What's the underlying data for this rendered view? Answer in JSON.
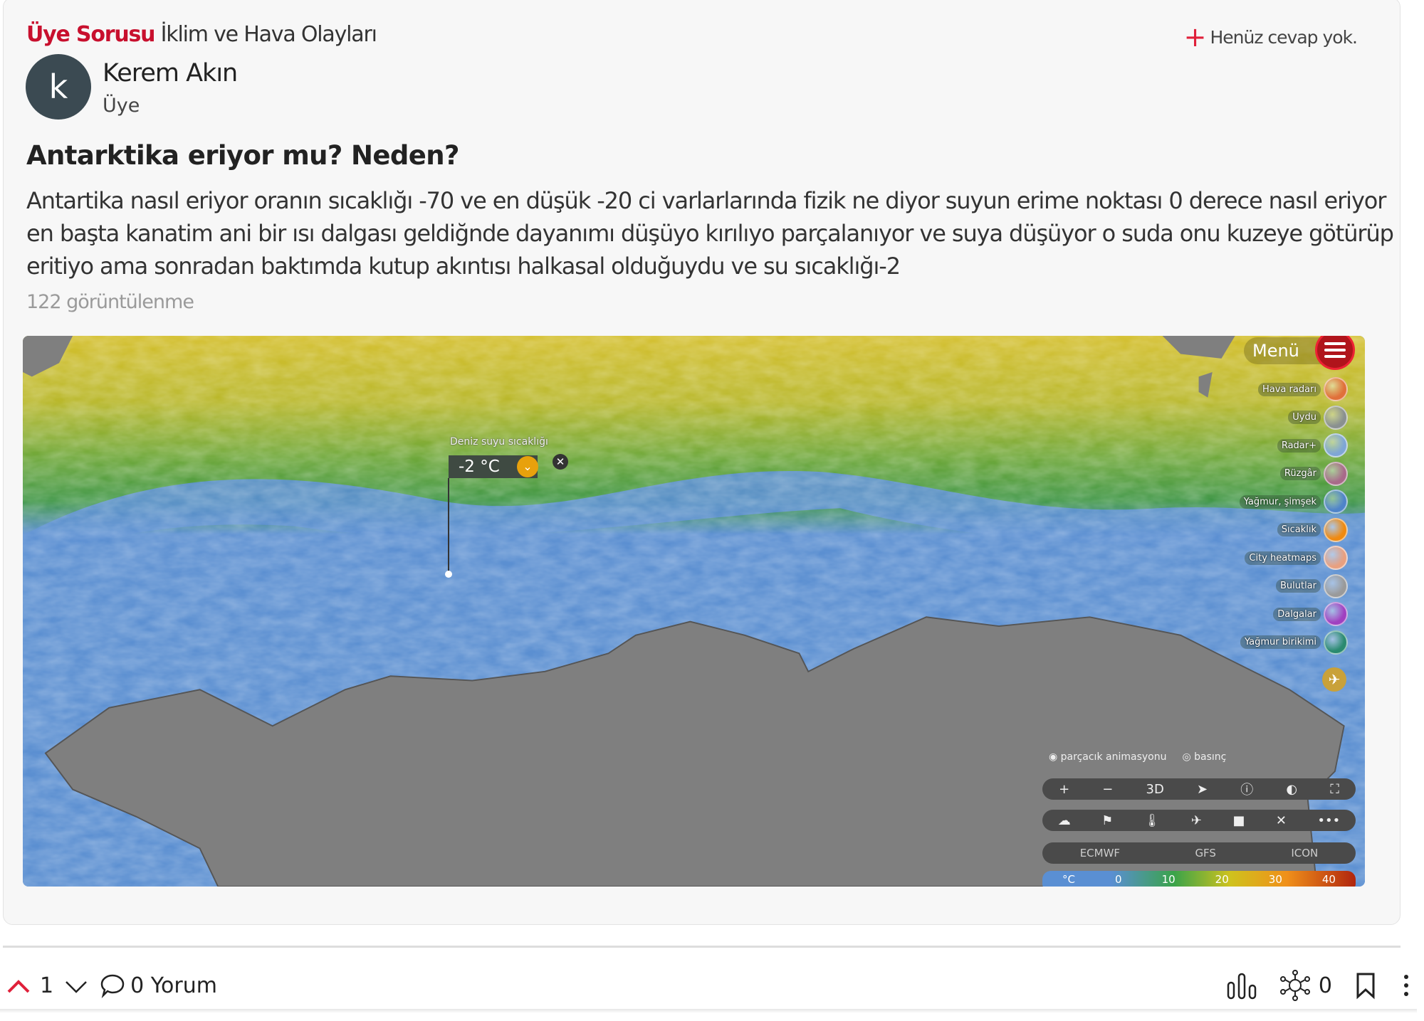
{
  "header": {
    "category_type": "Üye Sorusu",
    "category": "İklim ve Hava Olayları",
    "answer_status": "Henüz cevap yok.",
    "answer_icon": "plus-icon"
  },
  "author": {
    "initial": "k",
    "name": "Kerem Akın",
    "role": "Üye"
  },
  "post": {
    "title": "Antarktika eriyor mu? Neden?",
    "body": "Antartika nasıl eriyor oranın sıcaklığı -70 ve en düşük -20 ci varlarlarında fizik ne diyor suyun erime noktası 0 derece nasıl eriyor en başta kanatim ani bir ısı dalgası geldiğnde dayanımı düşüyo kırılıyo parçalanıyor ve suya düşüyor o suda onu kuzeye götürüp eritiyo ama sonradan baktımda kutup akıntısı halkasal olduğuydu ve su sıcaklığı-2",
    "views": "122 görüntülenme"
  },
  "map": {
    "menu_label": "Menü",
    "menu_items": [
      {
        "label": "Hava radarı",
        "color": "#e0703a"
      },
      {
        "label": "Uydu",
        "color": "#8a9090"
      },
      {
        "label": "Radar+",
        "color": "#7fa6d6"
      },
      {
        "label": "Rüzgâr",
        "color": "#a86a8a"
      },
      {
        "label": "Yağmur, şimşek",
        "color": "#4f84c9"
      },
      {
        "label": "Sıcaklık",
        "color": "#f08a10"
      },
      {
        "label": "City heatmaps",
        "color": "#e8a080"
      },
      {
        "label": "Bulutlar",
        "color": "#9a9a9a"
      },
      {
        "label": "Dalgalar",
        "color": "#a040c0"
      },
      {
        "label": "Yağmur birikimi",
        "color": "#2a8a70"
      }
    ],
    "popup": {
      "label": "Deniz suyu sıcaklığı",
      "value": "-2 °C"
    },
    "toggles": [
      "parçacık animasyonu",
      "basınç"
    ],
    "controls_row1": [
      "+",
      "−",
      "3D",
      "➤",
      "ⓘ",
      "◐",
      "⛶"
    ],
    "controls_row2": [
      "☁",
      "⚑",
      "🌡",
      "✈",
      "■",
      "✕",
      "•••"
    ],
    "models": [
      "ECMWF",
      "GFS",
      "ICON"
    ],
    "legend": [
      "°C",
      "0",
      "10",
      "20",
      "30",
      "40"
    ],
    "colors": {
      "ocean": "#5b8fd1",
      "land": "#7f7f7f",
      "green": "#3e9a45",
      "yellow": "#c9b62a"
    }
  },
  "footer": {
    "upvotes": "1",
    "comments": "0 Yorum",
    "shares": "0",
    "upvote_color": "#e0203a"
  }
}
